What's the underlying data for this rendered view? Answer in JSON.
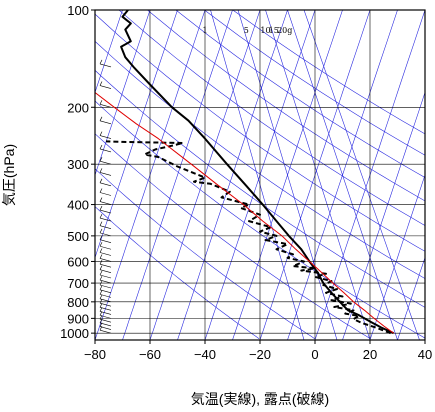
{
  "chart_data": {
    "type": "line",
    "title": "",
    "xlabel": "気温(実線), 露点(破線)",
    "ylabel": "気圧(hPa)",
    "xlim": [
      -80,
      40
    ],
    "ylim": [
      1050,
      100
    ],
    "y_scale": "log",
    "x_ticks": [
      "−80",
      "−60",
      "−40",
      "−20",
      "0",
      "20",
      "40"
    ],
    "y_ticks": [
      "100",
      "200",
      "300",
      "400",
      "500",
      "600",
      "700",
      "800",
      "900",
      "1000"
    ],
    "mixing_ratio_labels": [
      "1",
      "5",
      "10",
      "15",
      "20g"
    ],
    "colors": {
      "temperature": "#000000",
      "dewpoint": "#000000",
      "parcel": "#e00000",
      "reference": "#2a2ae0",
      "grid": "#000000"
    },
    "series": [
      {
        "role": "temperature",
        "style": "solid",
        "points": [
          [
            28.6,
            1000
          ],
          [
            24,
            960
          ],
          [
            20.5,
            925
          ],
          [
            16,
            880
          ],
          [
            12,
            850
          ],
          [
            9,
            800
          ],
          [
            6,
            750
          ],
          [
            3,
            700
          ],
          [
            1,
            650
          ],
          [
            -2,
            600
          ],
          [
            -5,
            550
          ],
          [
            -9.5,
            500
          ],
          [
            -14,
            450
          ],
          [
            -19,
            400
          ],
          [
            -25,
            350
          ],
          [
            -32,
            300
          ],
          [
            -40,
            250
          ],
          [
            -46,
            220
          ],
          [
            -52,
            200
          ],
          [
            -60,
            170
          ],
          [
            -66,
            150
          ],
          [
            -69,
            140
          ],
          [
            -70.5,
            130
          ],
          [
            -67,
            125
          ],
          [
            -69,
            115
          ],
          [
            -67,
            110
          ],
          [
            -70,
            105
          ],
          [
            -68,
            100
          ]
        ]
      },
      {
        "role": "dewpoint",
        "style": "dashed",
        "points": [
          [
            27.5,
            1000
          ],
          [
            22,
            960
          ],
          [
            17,
            930
          ],
          [
            14,
            905
          ],
          [
            16,
            885
          ],
          [
            11,
            870
          ],
          [
            14,
            850
          ],
          [
            7,
            830
          ],
          [
            13,
            810
          ],
          [
            6,
            790
          ],
          [
            10,
            770
          ],
          [
            4,
            750
          ],
          [
            8,
            730
          ],
          [
            3,
            710
          ],
          [
            6,
            690
          ],
          [
            0,
            670
          ],
          [
            4,
            655
          ],
          [
            -5,
            640
          ],
          [
            0,
            630
          ],
          [
            -8,
            620
          ],
          [
            -4,
            600
          ],
          [
            -10,
            585
          ],
          [
            -8,
            570
          ],
          [
            -14,
            550
          ],
          [
            -10,
            530
          ],
          [
            -18,
            515
          ],
          [
            -14,
            500
          ],
          [
            -20,
            485
          ],
          [
            -16,
            470
          ],
          [
            -24,
            450
          ],
          [
            -20,
            430
          ],
          [
            -27,
            410
          ],
          [
            -24,
            400
          ],
          [
            -29,
            390
          ],
          [
            -34,
            380
          ],
          [
            -31,
            365
          ],
          [
            -38,
            345
          ],
          [
            -44,
            340
          ],
          [
            -40,
            330
          ],
          [
            -50,
            305
          ],
          [
            -57,
            285
          ],
          [
            -62,
            280
          ],
          [
            -58,
            270
          ],
          [
            -52,
            263
          ],
          [
            -48,
            258
          ],
          [
            -70,
            256
          ],
          [
            -76,
            255
          ]
        ]
      },
      {
        "role": "parcel",
        "style": "solid",
        "points": [
          [
            28.6,
            1000
          ],
          [
            25,
            950
          ],
          [
            21.5,
            900
          ],
          [
            18,
            850
          ],
          [
            14,
            800
          ],
          [
            10.5,
            750
          ],
          [
            6.5,
            700
          ],
          [
            2.5,
            650
          ],
          [
            -2,
            600
          ],
          [
            -7,
            550
          ],
          [
            -12,
            500
          ],
          [
            -19,
            450
          ],
          [
            -26,
            400
          ],
          [
            -35,
            350
          ],
          [
            -45,
            300
          ],
          [
            -57,
            250
          ],
          [
            -65,
            225
          ],
          [
            -73,
            200
          ],
          [
            -80,
            180
          ]
        ]
      }
    ],
    "wind_barbs": "shown along left edge at x = −80 from 1000 hPa to 150 hPa"
  }
}
